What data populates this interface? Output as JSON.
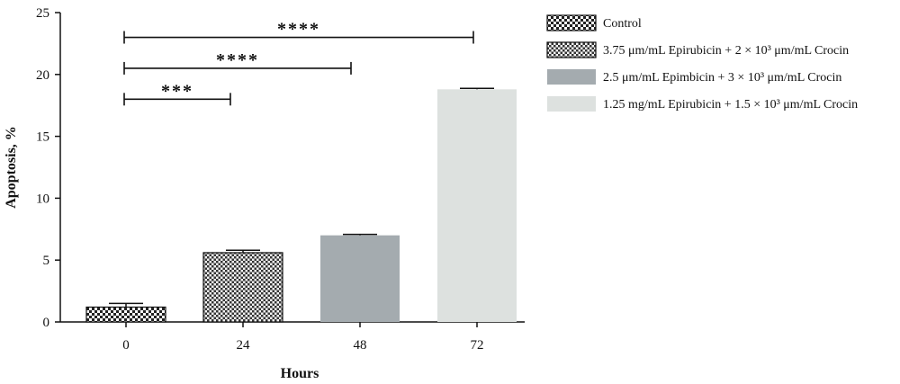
{
  "chart_data": {
    "type": "bar",
    "xlabel": "Hours",
    "ylabel": "Apoptosis, %",
    "ylim": [
      0,
      25
    ],
    "yticks": [
      "0",
      "5",
      "10",
      "15",
      "20",
      "25"
    ],
    "categories": [
      "0",
      "24",
      "48",
      "72"
    ],
    "values": [
      1.2,
      5.6,
      7.0,
      18.8
    ],
    "errors": [
      0.3,
      0.2,
      0.08,
      0.08
    ],
    "bar_fills": [
      "checker-fine",
      "checker-coarse",
      "#a4abaf",
      "#dde1df"
    ],
    "legend": {
      "placement": "right",
      "entries": [
        {
          "label": "Control",
          "fill": "checker-fine"
        },
        {
          "label": "3.75 μm/mL Epirubicin + 2 × 10³ μm/mL Crocin",
          "fill": "checker-coarse"
        },
        {
          "label": "2.5 μm/mL Epimbicin + 3 × 10³ μm/mL Crocin",
          "fill": "#a4abaf"
        },
        {
          "label": "1.25 mg/mL Epirubicin + 1.5 × 10³ μm/mL Crocin",
          "fill": "#dde1df"
        }
      ]
    },
    "significance": [
      {
        "from": 0,
        "to": 1,
        "label": "***",
        "level": 18
      },
      {
        "from": 0,
        "to": 2,
        "label": "****",
        "level": 20.5
      },
      {
        "from": 0,
        "to": 3,
        "label": "****",
        "level": 23
      }
    ],
    "grid": false
  }
}
